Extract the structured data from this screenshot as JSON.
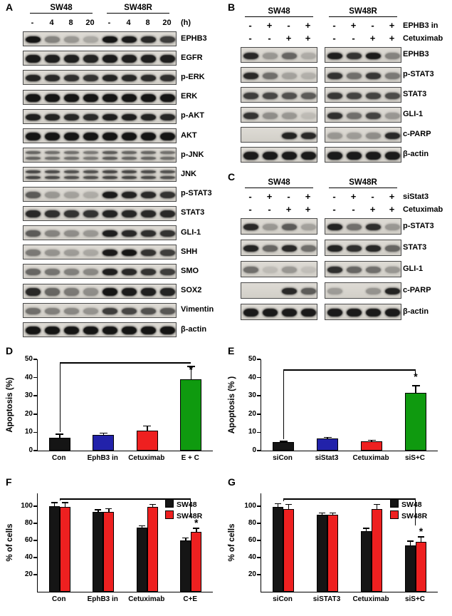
{
  "panelA": {
    "label": "A",
    "groups": [
      "SW48",
      "SW48R"
    ],
    "lane_headers": [
      "-",
      "4",
      "8",
      "20",
      "-",
      "4",
      "8",
      "20"
    ],
    "time_unit": "(h)",
    "rows": [
      {
        "name": "EPHB3",
        "bands": [
          0.95,
          0.4,
          0.3,
          0.22,
          0.95,
          0.92,
          0.85,
          0.75
        ]
      },
      {
        "name": "EGFR",
        "bands": [
          0.92,
          0.9,
          0.9,
          0.88,
          0.92,
          0.9,
          0.9,
          0.9
        ],
        "band_h": 11
      },
      {
        "name": "p-ERK",
        "bands": [
          0.88,
          0.85,
          0.82,
          0.8,
          0.88,
          0.86,
          0.84,
          0.82
        ]
      },
      {
        "name": "ERK",
        "bands": [
          0.95,
          0.95,
          0.95,
          0.95,
          0.95,
          0.95,
          0.95,
          0.95
        ],
        "band_h": 11
      },
      {
        "name": "p-AKT",
        "bands": [
          0.9,
          0.88,
          0.86,
          0.84,
          0.9,
          0.9,
          0.88,
          0.86
        ]
      },
      {
        "name": "AKT",
        "bands": [
          0.95,
          0.95,
          0.95,
          0.95,
          0.95,
          0.95,
          0.95,
          0.95
        ],
        "band_h": 11
      },
      {
        "name": "p-JNK",
        "bands": [
          0.55,
          0.5,
          0.5,
          0.45,
          0.6,
          0.55,
          0.55,
          0.5
        ],
        "doublet": true
      },
      {
        "name": "JNK",
        "bands": [
          0.7,
          0.68,
          0.65,
          0.65,
          0.7,
          0.7,
          0.68,
          0.65
        ],
        "doublet": true
      },
      {
        "name": "p-STAT3",
        "bands": [
          0.6,
          0.3,
          0.25,
          0.2,
          0.92,
          0.88,
          0.85,
          0.8
        ]
      },
      {
        "name": "STAT3",
        "bands": [
          0.85,
          0.82,
          0.8,
          0.8,
          0.88,
          0.86,
          0.85,
          0.85
        ],
        "band_h": 10
      },
      {
        "name": "GLI-1",
        "bands": [
          0.6,
          0.4,
          0.35,
          0.3,
          0.9,
          0.85,
          0.82,
          0.8
        ]
      },
      {
        "name": "SHH",
        "bands": [
          0.45,
          0.32,
          0.28,
          0.22,
          0.92,
          0.95,
          0.8,
          0.75
        ]
      },
      {
        "name": "SMO",
        "bands": [
          0.55,
          0.48,
          0.42,
          0.38,
          0.9,
          0.85,
          0.8,
          0.75
        ]
      },
      {
        "name": "SOX2",
        "bands": [
          0.85,
          0.55,
          0.45,
          0.35,
          0.95,
          0.92,
          0.9,
          0.88
        ],
        "band_h": 11
      },
      {
        "name": "Vimentin",
        "bands": [
          0.5,
          0.42,
          0.38,
          0.32,
          0.75,
          0.7,
          0.65,
          0.62
        ]
      },
      {
        "name": "β-actin",
        "bands": [
          0.95,
          0.95,
          0.95,
          0.95,
          0.95,
          0.95,
          0.95,
          0.95
        ],
        "band_h": 11
      }
    ]
  },
  "panelB": {
    "label": "B",
    "groups": [
      "SW48",
      "SW48R"
    ],
    "treatment_rows": [
      {
        "label": "EPHB3 in",
        "signs": [
          "-",
          "+",
          "-",
          "+",
          "-",
          "+",
          "-",
          "+"
        ]
      },
      {
        "label": "Cetuximab",
        "signs": [
          "-",
          "-",
          "+",
          "+",
          "-",
          "-",
          "+",
          "+"
        ]
      }
    ],
    "rows": [
      {
        "name": "EPHB3",
        "groups": [
          [
            0.85,
            0.3,
            0.55,
            0.2
          ],
          [
            0.9,
            0.8,
            0.92,
            0.4
          ]
        ]
      },
      {
        "name": "p-STAT3",
        "groups": [
          [
            0.85,
            0.5,
            0.25,
            0.18
          ],
          [
            0.8,
            0.5,
            0.78,
            0.45
          ]
        ]
      },
      {
        "name": "STAT3",
        "groups": [
          [
            0.75,
            0.7,
            0.65,
            0.6
          ],
          [
            0.78,
            0.72,
            0.72,
            0.68
          ]
        ]
      },
      {
        "name": "GLI-1",
        "groups": [
          [
            0.8,
            0.35,
            0.3,
            0.12
          ],
          [
            0.82,
            0.5,
            0.72,
            0.3
          ]
        ]
      },
      {
        "name": "c-PARP",
        "groups": [
          [
            0.0,
            0.0,
            0.88,
            0.85
          ],
          [
            0.3,
            0.28,
            0.35,
            0.85
          ]
        ]
      },
      {
        "name": "β-actin",
        "groups": [
          [
            0.92,
            0.92,
            0.92,
            0.92
          ],
          [
            0.92,
            0.92,
            0.92,
            0.92
          ]
        ],
        "band_h": 11
      }
    ]
  },
  "panelC": {
    "label": "C",
    "groups": [
      "SW48",
      "SW48R"
    ],
    "treatment_rows": [
      {
        "label": "siStat3",
        "signs": [
          "-",
          "+",
          "-",
          "+",
          "-",
          "+",
          "-",
          "+"
        ]
      },
      {
        "label": "Cetuximab",
        "signs": [
          "-",
          "-",
          "+",
          "+",
          "-",
          "-",
          "+",
          "+"
        ]
      }
    ],
    "rows": [
      {
        "name": "p-STAT3",
        "groups": [
          [
            0.85,
            0.3,
            0.6,
            0.25
          ],
          [
            0.88,
            0.5,
            0.82,
            0.3
          ]
        ]
      },
      {
        "name": "STAT3",
        "groups": [
          [
            0.88,
            0.55,
            0.85,
            0.5
          ],
          [
            0.88,
            0.82,
            0.86,
            0.55
          ]
        ]
      },
      {
        "name": "GLI-1",
        "groups": [
          [
            0.5,
            0.12,
            0.3,
            0.1
          ],
          [
            0.82,
            0.55,
            0.5,
            0.3
          ]
        ]
      },
      {
        "name": "c-PARP",
        "groups": [
          [
            0.0,
            0.0,
            0.85,
            0.6
          ],
          [
            0.28,
            0.0,
            0.32,
            0.88
          ]
        ]
      },
      {
        "name": "β-actin",
        "groups": [
          [
            0.92,
            0.92,
            0.92,
            0.92
          ],
          [
            0.92,
            0.92,
            0.92,
            0.92
          ]
        ],
        "band_h": 11
      }
    ]
  },
  "chart_data": [
    {
      "id": "D",
      "panel_label": "D",
      "type": "bar",
      "title": "",
      "xlabel": "",
      "ylabel": "Apoptosis (%)",
      "ylim": [
        0,
        50
      ],
      "yticks": [
        0,
        10,
        20,
        30,
        40,
        50
      ],
      "grid": false,
      "categories": [
        "Con",
        "EphB3 in",
        "Cetuximab",
        "E + C"
      ],
      "values": [
        7,
        8.5,
        11,
        39
      ],
      "errors": [
        2,
        1,
        2.5,
        7
      ],
      "colors": [
        "#151515",
        "#2222aa",
        "#ee2020",
        "#0f9a0f"
      ],
      "sig": {
        "index": 3,
        "label": "*"
      },
      "bracket": {
        "from": 0,
        "to": 3,
        "y": 48
      }
    },
    {
      "id": "E",
      "panel_label": "E",
      "type": "bar",
      "title": "",
      "xlabel": "",
      "ylabel": "Apoptosis (% )",
      "ylim": [
        0,
        50
      ],
      "yticks": [
        0,
        10,
        20,
        30,
        40,
        50
      ],
      "grid": false,
      "categories": [
        "siCon",
        "siStat3",
        "Cetuximab",
        "siS+C"
      ],
      "values": [
        4.5,
        6.5,
        5,
        31.5
      ],
      "errors": [
        0.5,
        0.8,
        0.6,
        4
      ],
      "colors": [
        "#151515",
        "#2222aa",
        "#ee2020",
        "#0f9a0f"
      ],
      "sig": {
        "index": 3,
        "label": "*"
      },
      "bracket": {
        "from": 0,
        "to": 3,
        "y": 44
      }
    },
    {
      "id": "F",
      "panel_label": "F",
      "type": "grouped-bar",
      "title": "",
      "xlabel": "",
      "ylabel": "% of cells",
      "ylim": [
        0,
        115
      ],
      "yticks": [
        20,
        40,
        60,
        80,
        100
      ],
      "grid": false,
      "legend_position": "top-right",
      "categories": [
        "Con",
        "EphB3 in",
        "Cetuximab",
        "C+E"
      ],
      "series": [
        {
          "name": "SW48",
          "color": "#151515",
          "values": [
            100,
            93,
            75,
            60
          ],
          "errors": [
            4,
            3,
            2,
            3
          ]
        },
        {
          "name": "SW48R",
          "color": "#ee2020",
          "values": [
            99,
            93,
            99,
            70
          ],
          "errors": [
            5,
            4,
            3,
            4
          ]
        }
      ],
      "sig": {
        "series": 1,
        "index": 3,
        "label": "*"
      },
      "bracket": {
        "from": 0,
        "to": 3,
        "y": 108
      }
    },
    {
      "id": "G",
      "panel_label": "G",
      "type": "grouped-bar",
      "title": "",
      "xlabel": "",
      "ylabel": "% of cells",
      "ylim": [
        0,
        115
      ],
      "yticks": [
        20,
        40,
        60,
        80,
        100
      ],
      "grid": false,
      "legend_position": "top-right",
      "categories": [
        "siCon",
        "siSTAT3",
        "Cetuximab",
        "siS+C"
      ],
      "series": [
        {
          "name": "SW48",
          "color": "#151515",
          "values": [
            99,
            90,
            71,
            54
          ],
          "errors": [
            4,
            2,
            3,
            5
          ]
        },
        {
          "name": "SW48R",
          "color": "#ee2020",
          "values": [
            97,
            90,
            97,
            58
          ],
          "errors": [
            5,
            2,
            5,
            6
          ]
        }
      ],
      "sig": {
        "series": 1,
        "index": 3,
        "label": "*"
      },
      "bracket": {
        "from": 0,
        "to": 3,
        "y": 108
      }
    }
  ]
}
